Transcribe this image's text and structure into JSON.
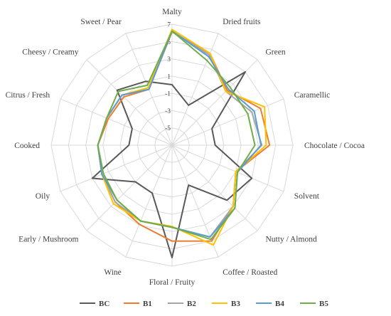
{
  "chart_data": {
    "type": "radar",
    "title": "",
    "categories": [
      "Malty",
      "Dried fruits",
      "Green",
      "Caramellic",
      "Chocolate / Cocoa",
      "Solvent",
      "Nutty / Almond",
      "Coffee / Roasted",
      "Floral / Fruity",
      "Wine",
      "Early / Mushroom",
      "Oily",
      "Cooked",
      "Citrus / Fresh",
      "Cheesy / Creamy",
      "Sweet / Pear"
    ],
    "rlim": [
      -7,
      7
    ],
    "ticks": [
      -5,
      -3,
      -1,
      1,
      3,
      5,
      7
    ],
    "tick_labels": [
      "-5",
      "-3",
      "-1",
      "1",
      "3",
      "5",
      "7"
    ],
    "grid": true,
    "legend_position": "bottom",
    "series": [
      {
        "name": "BC",
        "color": "#595959",
        "values": [
          0,
          -2,
          5,
          -2,
          -2,
          3,
          2,
          -2,
          6,
          -1,
          -1,
          3,
          -2,
          -2,
          2,
          1
        ]
      },
      {
        "name": "B1",
        "color": "#ED7D31",
        "values": [
          6.1,
          4.5,
          2,
          4.1,
          4.3,
          1,
          3,
          5,
          4.1,
          2.9,
          2.3,
          1.8,
          1.6,
          1,
          0.9,
          0
        ]
      },
      {
        "name": "B2",
        "color": "#A5A5A5",
        "values": [
          6.2,
          4.3,
          1.8,
          3,
          3.4,
          1,
          3,
          4.5,
          2.5,
          2.5,
          2.3,
          1.8,
          1.6,
          1.2,
          1.2,
          0
        ]
      },
      {
        "name": "B3",
        "color": "#FFC000",
        "values": [
          6.4,
          4.5,
          1.8,
          4.6,
          3.9,
          1,
          3,
          5.5,
          2.4,
          2.5,
          2.6,
          1.8,
          1.6,
          1.2,
          1.2,
          0.2
        ]
      },
      {
        "name": "B4",
        "color": "#5B9BD5",
        "values": [
          6.2,
          4.1,
          2.2,
          3.3,
          3.3,
          1.2,
          3.3,
          4.5,
          2.5,
          2.5,
          2,
          1.8,
          1.6,
          1.2,
          1.2,
          0
        ]
      },
      {
        "name": "B5",
        "color": "#70AD47",
        "values": [
          6.2,
          3.6,
          2.5,
          2.5,
          2.6,
          1.2,
          3.3,
          4.8,
          2.5,
          2.5,
          2,
          1.6,
          1.6,
          1.2,
          1.8,
          0.5
        ]
      }
    ]
  }
}
